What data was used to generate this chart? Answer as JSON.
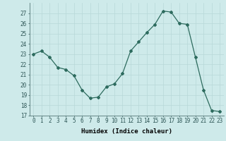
{
  "x": [
    0,
    1,
    2,
    3,
    4,
    5,
    6,
    7,
    8,
    9,
    10,
    11,
    12,
    13,
    14,
    15,
    16,
    17,
    18,
    19,
    20,
    21,
    22,
    23
  ],
  "y": [
    23.0,
    23.3,
    22.7,
    21.7,
    21.5,
    20.9,
    19.5,
    18.7,
    18.8,
    19.8,
    20.1,
    21.1,
    23.3,
    24.2,
    25.1,
    25.9,
    27.2,
    27.1,
    26.0,
    25.9,
    22.7,
    19.5,
    17.5,
    17.4
  ],
  "xlabel": "Humidex (Indice chaleur)",
  "ylim": [
    17,
    28
  ],
  "xlim": [
    -0.5,
    23.5
  ],
  "yticks": [
    17,
    18,
    19,
    20,
    21,
    22,
    23,
    24,
    25,
    26,
    27
  ],
  "xtick_labels": [
    "0",
    "1",
    "2",
    "3",
    "4",
    "5",
    "6",
    "7",
    "8",
    "9",
    "10",
    "11",
    "12",
    "13",
    "14",
    "15",
    "16",
    "17",
    "18",
    "19",
    "20",
    "21",
    "22",
    "23"
  ],
  "line_color": "#2d6b5e",
  "marker": "D",
  "marker_size": 2.0,
  "bg_color": "#ceeaea",
  "grid_color": "#b8d8d8",
  "label_fontsize": 6.5,
  "tick_fontsize": 5.5
}
